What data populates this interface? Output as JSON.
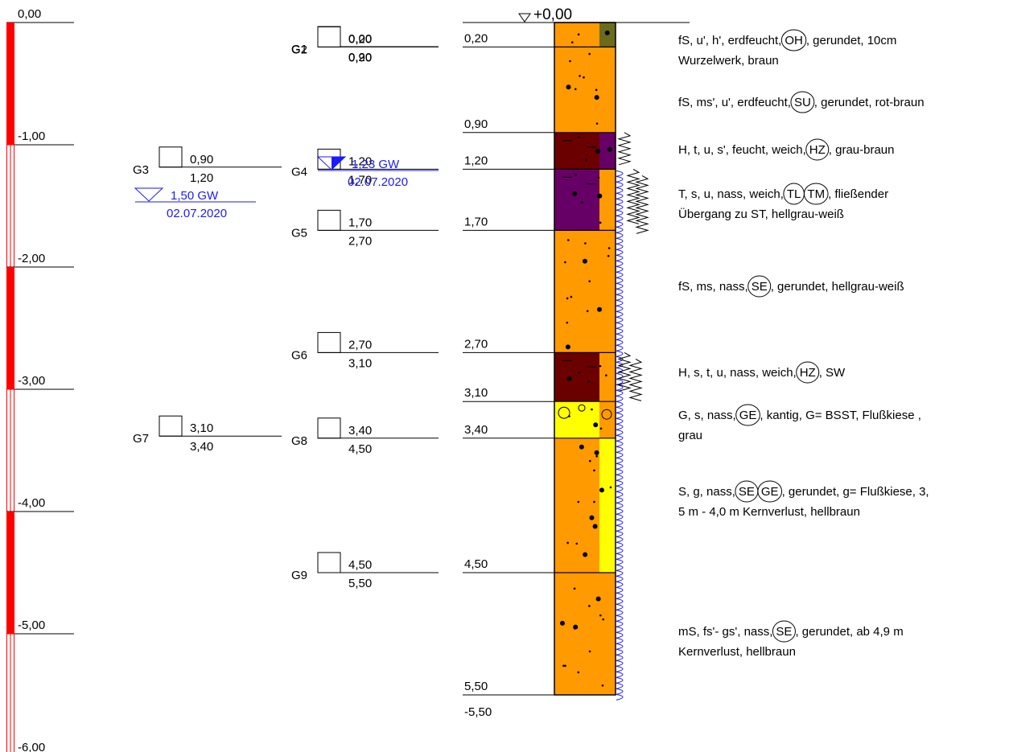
{
  "surface_label": "+0,00",
  "depth_scale": {
    "ticks": [
      "0,00",
      "-1,00",
      "-2,00",
      "-3,00",
      "-4,00",
      "-5,00",
      "-6,00"
    ],
    "colors": {
      "filled": "#ff0000",
      "outline": "#ff0000"
    }
  },
  "samples": [
    {
      "id": "G1",
      "top": "0,00",
      "bottom": "0,20",
      "column": "middle"
    },
    {
      "id": "G2",
      "top": "0,20",
      "bottom": "0,90",
      "column": "middle"
    },
    {
      "id": "G3",
      "top": "0,90",
      "bottom": "1,20",
      "column": "left"
    },
    {
      "id": "G4",
      "top": "1,20",
      "bottom": "1,70",
      "column": "middle"
    },
    {
      "id": "G5",
      "top": "1,70",
      "bottom": "2,70",
      "column": "middle"
    },
    {
      "id": "G6",
      "top": "2,70",
      "bottom": "3,10",
      "column": "middle"
    },
    {
      "id": "G7",
      "top": "3,10",
      "bottom": "3,40",
      "column": "left"
    },
    {
      "id": "G8",
      "top": "3,40",
      "bottom": "4,50",
      "column": "middle"
    },
    {
      "id": "G9",
      "top": "4,50",
      "bottom": "5,50",
      "column": "middle"
    }
  ],
  "groundwater": [
    {
      "level": "1,23 GW",
      "date": "02.07.2020",
      "style": "filled"
    },
    {
      "level": "1,50 GW",
      "date": "02.07.2020",
      "style": "open"
    }
  ],
  "layer_depths": [
    "0,20",
    "0,90",
    "1,20",
    "1,70",
    "2,70",
    "3,10",
    "3,40",
    "4,50",
    "5,50"
  ],
  "final_depth": "-5,50",
  "layers": [
    {
      "from": 0.0,
      "to": 0.2,
      "color": "#ff9a00",
      "stripe_color": "#6b6b1e"
    },
    {
      "from": 0.2,
      "to": 0.9,
      "color": "#ff9a00",
      "stripe_color": "#ff9a00"
    },
    {
      "from": 0.9,
      "to": 1.2,
      "color": "#6b0000",
      "stripe_color": "#660066"
    },
    {
      "from": 1.2,
      "to": 1.7,
      "color": "#660066",
      "stripe_color": "#ff9a00"
    },
    {
      "from": 1.7,
      "to": 2.7,
      "color": "#ff9a00",
      "stripe_color": "#ff9a00"
    },
    {
      "from": 2.7,
      "to": 3.1,
      "color": "#6b0000",
      "stripe_color": "#ff9a00"
    },
    {
      "from": 3.1,
      "to": 3.4,
      "color": "#ffff00",
      "stripe_color": "#ff9a00"
    },
    {
      "from": 3.4,
      "to": 4.5,
      "color": "#ff9a00",
      "stripe_color": "#ffff00"
    },
    {
      "from": 4.5,
      "to": 5.5,
      "color": "#ff9a00",
      "stripe_color": "#ff9a00"
    }
  ],
  "descriptions": [
    {
      "lines": [
        [
          {
            "t": "fS, u', h', erdfeucht,"
          },
          {
            "c": "OH"
          },
          {
            "t": ", gerundet, 10cm"
          }
        ],
        [
          {
            "t": "Wurzelwerk, braun"
          }
        ]
      ]
    },
    {
      "lines": [
        [
          {
            "t": "fS, ms', u', erdfeucht,"
          },
          {
            "c": "SU"
          },
          {
            "t": ", gerundet, rot-braun"
          }
        ]
      ]
    },
    {
      "lines": [
        [
          {
            "t": "H, t, u, s', feucht, weich,"
          },
          {
            "c": "HZ"
          },
          {
            "t": ", grau-braun"
          }
        ]
      ]
    },
    {
      "lines": [
        [
          {
            "t": "T, s, u, nass, weich,"
          },
          {
            "c": "TL"
          },
          {
            "c": "TM"
          },
          {
            "t": ", fließender"
          }
        ],
        [
          {
            "t": "Übergang zu ST, hellgrau-weiß"
          }
        ]
      ]
    },
    {
      "lines": [
        [
          {
            "t": "fS, ms, nass,"
          },
          {
            "c": "SE"
          },
          {
            "t": ", gerundet, hellgrau-weiß"
          }
        ]
      ]
    },
    {
      "lines": [
        [
          {
            "t": "H, s, t, u, nass, weich,"
          },
          {
            "c": "HZ"
          },
          {
            "t": ", SW"
          }
        ]
      ]
    },
    {
      "lines": [
        [
          {
            "t": "G, s, nass,"
          },
          {
            "c": "GE"
          },
          {
            "t": ", kantig, G= BSST, Flußkiese ,"
          }
        ],
        [
          {
            "t": "grau"
          }
        ]
      ]
    },
    {
      "lines": [
        [
          {
            "t": "S, g, nass,"
          },
          {
            "c": "SE"
          },
          {
            "c": "GE"
          },
          {
            "t": ", gerundet, g= Flußkiese, 3,"
          }
        ],
        [
          {
            "t": "5 m - 4,0 m Kernverlust, hellbraun"
          }
        ]
      ]
    },
    {
      "lines": [
        [
          {
            "t": "mS, fs'- gs', nass,"
          },
          {
            "c": "SE"
          },
          {
            "t": ", gerundet, ab 4,9 m"
          }
        ],
        [
          {
            "t": "Kernverlust, hellbraun"
          }
        ]
      ]
    }
  ]
}
